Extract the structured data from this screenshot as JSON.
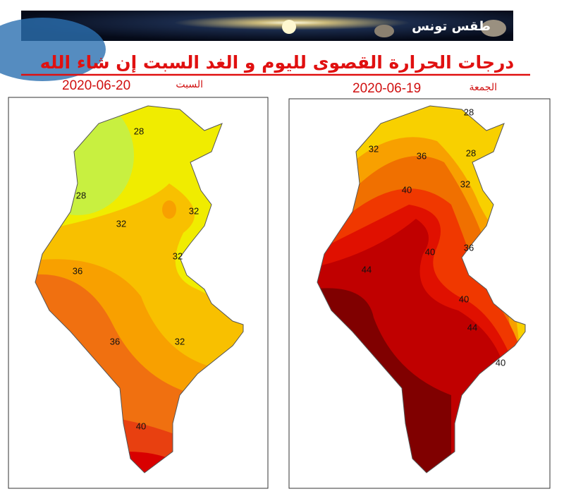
{
  "banner": {
    "text": "طقس تونس"
  },
  "title": "درجات الحرارة القصوى  لليوم و الغد السبت إن شاء الله",
  "maps": [
    {
      "day": "السبت",
      "date": "2020-06-20",
      "contour_labels": [
        28,
        28,
        32,
        32,
        32,
        36,
        36,
        32,
        40
      ]
    },
    {
      "day": "الجمعة",
      "date": "2020-06-19",
      "contour_labels": [
        28,
        32,
        36,
        28,
        40,
        32,
        40,
        36,
        44,
        40,
        44,
        40
      ]
    }
  ]
}
